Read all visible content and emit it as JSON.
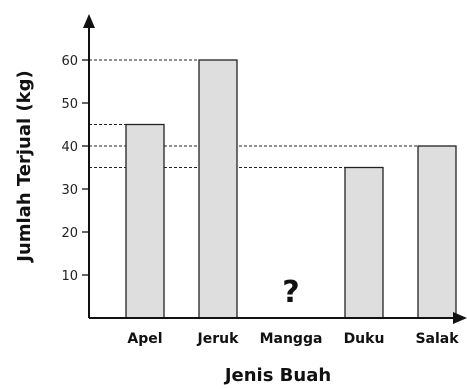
{
  "chart_data": {
    "type": "bar",
    "xlabel": "Jenis Buah",
    "ylabel": "Jumlah Terjual (kg)",
    "categories": [
      "Apel",
      "Jeruk",
      "Mangga",
      "Duku",
      "Salak"
    ],
    "values": [
      45,
      60,
      null,
      35,
      40
    ],
    "unknown_marker": "?",
    "yticks": [
      10,
      20,
      30,
      40,
      50,
      60
    ],
    "ylim": [
      0,
      65
    ],
    "grid": false,
    "reference_lines": [
      35,
      40,
      45,
      60
    ],
    "colors": {
      "bar_fill": "#dedede",
      "bar_stroke": "#222222",
      "axis": "#111111",
      "dash": "#222222"
    }
  }
}
